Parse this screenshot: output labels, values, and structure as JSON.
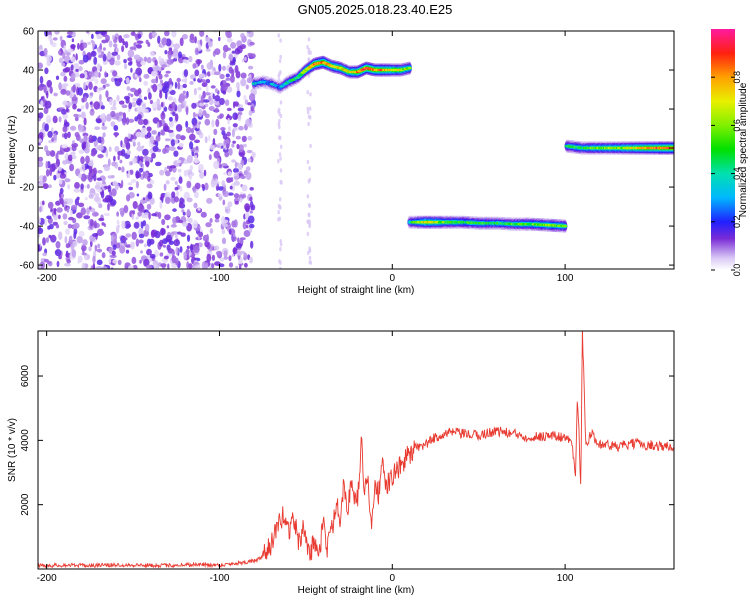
{
  "title": "GN05.2025.018.23.40.E25",
  "chart_data": [
    {
      "type": "heatmap",
      "xlabel": "Height of straight line (km)",
      "ylabel": "Frequency (Hz)",
      "xlim": [
        -205,
        163
      ],
      "ylim": [
        -62,
        60
      ],
      "xticks": [
        -200,
        -100,
        0,
        100
      ],
      "yticks": [
        -60,
        -40,
        -20,
        0,
        20,
        40,
        60
      ],
      "colorbar": {
        "label": "Normalized spectral amplitude",
        "range": [
          0.0,
          1.0
        ],
        "ticks": [
          0.0,
          0.2,
          0.4,
          0.6,
          0.8
        ]
      },
      "noise_region": {
        "x_from": -205,
        "x_to": -80,
        "description_level": 0.15
      },
      "tracks": [
        {
          "x": [
            -80,
            -75,
            -70,
            -65,
            -60,
            -55,
            -50,
            -45,
            -40,
            -35,
            -30,
            -25,
            -20,
            -15,
            -10,
            -5,
            0,
            5,
            10
          ],
          "y": [
            33,
            34,
            33,
            31,
            34,
            36,
            40,
            43,
            44,
            42,
            41,
            39,
            39,
            41,
            40,
            40,
            40,
            40,
            41
          ],
          "peak": [
            0.35,
            0.3,
            0.3,
            0.3,
            0.4,
            0.45,
            0.6,
            0.8,
            0.85,
            0.7,
            0.75,
            0.7,
            0.8,
            0.9,
            0.85,
            0.8,
            0.75,
            0.7,
            0.6
          ]
        },
        {
          "x": [
            10,
            20,
            30,
            40,
            50,
            60,
            70,
            80,
            90,
            100
          ],
          "y": [
            -38,
            -38,
            -38,
            -38,
            -38.5,
            -38.5,
            -39,
            -39,
            -39.5,
            -40
          ],
          "peak": [
            0.4,
            0.7,
            0.55,
            0.5,
            0.5,
            0.45,
            0.5,
            0.55,
            0.6,
            0.55
          ]
        },
        {
          "x": [
            101,
            110,
            120,
            130,
            140,
            150,
            163
          ],
          "y": [
            1,
            0,
            0,
            0,
            0,
            0,
            0
          ],
          "peak": [
            0.45,
            0.5,
            0.55,
            0.6,
            0.7,
            0.8,
            0.9
          ]
        }
      ]
    },
    {
      "type": "line",
      "xlabel": "Height of straight line (km)",
      "ylabel": "SNR (10 * v/v)",
      "xlim": [
        -205,
        163
      ],
      "ylim": [
        0,
        7400
      ],
      "xticks": [
        -200,
        -100,
        0,
        100
      ],
      "yticks": [
        2000,
        4000,
        6000
      ],
      "series": [
        {
          "color": "#e83a30",
          "x": [
            -205,
            -190,
            -175,
            -160,
            -145,
            -130,
            -115,
            -100,
            -90,
            -80,
            -75,
            -70,
            -66,
            -63,
            -60,
            -57,
            -54,
            -51,
            -48,
            -45,
            -42,
            -40,
            -38,
            -35,
            -32,
            -30,
            -28,
            -26,
            -24,
            -22,
            -20,
            -18,
            -16,
            -14,
            -12,
            -10,
            -8,
            -6,
            -4,
            -2,
            0,
            2,
            5,
            8,
            11,
            14,
            17,
            20,
            25,
            30,
            35,
            40,
            50,
            60,
            70,
            80,
            90,
            100,
            104,
            106,
            107,
            108,
            109,
            110,
            112,
            115,
            120,
            130,
            140,
            150,
            160,
            163
          ],
          "y": [
            100,
            120,
            110,
            130,
            120,
            110,
            140,
            120,
            180,
            250,
            350,
            800,
            1300,
            1700,
            1200,
            1600,
            800,
            1300,
            400,
            900,
            500,
            1600,
            600,
            1200,
            2200,
            1500,
            2800,
            1900,
            2500,
            2300,
            2100,
            4000,
            2400,
            2900,
            1000,
            2700,
            2300,
            3300,
            2500,
            2700,
            2900,
            3000,
            3200,
            3500,
            3600,
            3700,
            3800,
            3900,
            4100,
            4200,
            4250,
            4200,
            4150,
            4300,
            4200,
            4100,
            4150,
            4100,
            3900,
            3000,
            5200,
            4300,
            2500,
            7400,
            3800,
            4200,
            3900,
            3800,
            3900,
            3850,
            3800,
            3750
          ]
        }
      ]
    }
  ]
}
